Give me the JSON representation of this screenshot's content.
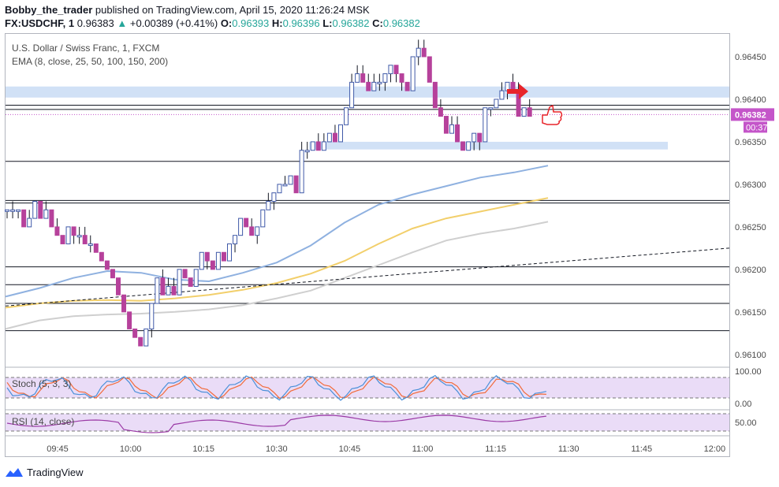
{
  "header": {
    "author": "Bobby_the_trader",
    "published_text": "published on TradingView.com, April 15, 2020 11:26:24 MSK",
    "symbol": "FX:USDCHF, 1",
    "last": "0.96383",
    "arrow": "▲",
    "change": "+0.00389 (+0.41%)",
    "o_label": "O:",
    "o_value": "0.96393",
    "h_label": "H:",
    "h_value": "0.96396",
    "l_label": "L:",
    "l_value": "0.96382",
    "c_label": "C:",
    "c_value": "0.96382"
  },
  "legend": {
    "instrument": "U.S. Dollar / Swiss Franc, 1, FXCM",
    "ema": "EMA (8, close, 25, 50, 100, 150, 200)",
    "stoch": "Stoch (5, 3, 3)",
    "rsi": "RSI (14, close)"
  },
  "price_badge": "0.96382",
  "timer_badge": "00:37",
  "footer": {
    "brand": "TradingView"
  },
  "colors": {
    "up": "#3f59a8",
    "down": "#b6419b",
    "ema_fast": "#8fb1e0",
    "ema_mid": "#f2cf6b",
    "ema_slow": "#cfcfcf",
    "zone": "#c9dcf5",
    "stoch_k": "#4a90d9",
    "stoch_d": "#f26b3a",
    "stoch_bg": "#eadcf7",
    "rsi": "#9b3aa6",
    "badge": "#c455c9"
  },
  "chart_data": {
    "type": "candlestick",
    "price_axis": {
      "min": 0.96085,
      "max": 0.96475,
      "ticks": [
        "0.96450",
        "0.96400",
        "0.96350",
        "0.96300",
        "0.96250",
        "0.96200",
        "0.96150",
        "0.96100"
      ]
    },
    "time_axis": {
      "ticks": [
        "09:45",
        "10:00",
        "10:15",
        "10:30",
        "10:45",
        "11:00",
        "11:15",
        "11:30",
        "11:45",
        "12:00"
      ]
    },
    "stoch_axis": [
      "100.00",
      "0.00"
    ],
    "rsi_axis": [
      "50.00"
    ],
    "horizontal_levels": [
      0.96393,
      0.96388,
      0.96327,
      0.96281,
      0.96278,
      0.96203,
      0.96182,
      0.9616,
      0.96128
    ],
    "zones": [
      {
        "from": 0.96402,
        "to": 0.96415
      },
      {
        "from": 0.96341,
        "to": 0.9635
      }
    ],
    "candles": [
      [
        0.9627,
        0.9627,
        0.9626,
        0.9627
      ],
      [
        0.9627,
        0.9628,
        0.9626,
        0.9627
      ],
      [
        0.9627,
        0.9627,
        0.9626,
        0.9627
      ],
      [
        0.9627,
        0.9627,
        0.9625,
        0.9625
      ],
      [
        0.9625,
        0.9627,
        0.9625,
        0.9626
      ],
      [
        0.9626,
        0.9628,
        0.9626,
        0.9628
      ],
      [
        0.9628,
        0.9628,
        0.9626,
        0.9626
      ],
      [
        0.9626,
        0.9628,
        0.9626,
        0.9627
      ],
      [
        0.9627,
        0.9627,
        0.9625,
        0.9625
      ],
      [
        0.9625,
        0.9626,
        0.9624,
        0.9624
      ],
      [
        0.9624,
        0.9624,
        0.9623,
        0.9623
      ],
      [
        0.9623,
        0.9625,
        0.9623,
        0.9625
      ],
      [
        0.9625,
        0.9625,
        0.9623,
        0.9624
      ],
      [
        0.9624,
        0.9625,
        0.9623,
        0.9624
      ],
      [
        0.9624,
        0.9625,
        0.9623,
        0.9623
      ],
      [
        0.9623,
        0.9624,
        0.9622,
        0.9623
      ],
      [
        0.9623,
        0.9623,
        0.9622,
        0.9622
      ],
      [
        0.9622,
        0.9622,
        0.9621,
        0.9621
      ],
      [
        0.9621,
        0.9621,
        0.962,
        0.962
      ],
      [
        0.962,
        0.962,
        0.9619,
        0.9619
      ],
      [
        0.9619,
        0.9619,
        0.9617,
        0.9617
      ],
      [
        0.9617,
        0.9617,
        0.9615,
        0.9615
      ],
      [
        0.9615,
        0.9615,
        0.9613,
        0.9613
      ],
      [
        0.9613,
        0.9613,
        0.9612,
        0.9612
      ],
      [
        0.9612,
        0.9612,
        0.9611,
        0.9611
      ],
      [
        0.9611,
        0.9613,
        0.9611,
        0.9613
      ],
      [
        0.9613,
        0.9616,
        0.9612,
        0.9616
      ],
      [
        0.9616,
        0.9619,
        0.9616,
        0.9619
      ],
      [
        0.9619,
        0.962,
        0.9617,
        0.9617
      ],
      [
        0.9617,
        0.9619,
        0.9617,
        0.9618
      ],
      [
        0.9618,
        0.9619,
        0.9617,
        0.9617
      ],
      [
        0.9617,
        0.962,
        0.9617,
        0.962
      ],
      [
        0.962,
        0.962,
        0.9619,
        0.9619
      ],
      [
        0.9619,
        0.9619,
        0.9618,
        0.9618
      ],
      [
        0.9618,
        0.962,
        0.9618,
        0.962
      ],
      [
        0.962,
        0.9622,
        0.962,
        0.9622
      ],
      [
        0.9622,
        0.9622,
        0.962,
        0.9621
      ],
      [
        0.9621,
        0.9621,
        0.962,
        0.962
      ],
      [
        0.962,
        0.9622,
        0.962,
        0.9622
      ],
      [
        0.9622,
        0.9622,
        0.9621,
        0.9621
      ],
      [
        0.9621,
        0.9623,
        0.9621,
        0.9623
      ],
      [
        0.9623,
        0.9624,
        0.9622,
        0.9624
      ],
      [
        0.9624,
        0.9626,
        0.9624,
        0.9626
      ],
      [
        0.9626,
        0.9626,
        0.9625,
        0.9625
      ],
      [
        0.9625,
        0.9626,
        0.9624,
        0.9624
      ],
      [
        0.9624,
        0.9625,
        0.9623,
        0.9625
      ],
      [
        0.9625,
        0.9627,
        0.9625,
        0.9627
      ],
      [
        0.9627,
        0.9629,
        0.9627,
        0.9628
      ],
      [
        0.9628,
        0.9629,
        0.9627,
        0.9629
      ],
      [
        0.9629,
        0.963,
        0.9629,
        0.963
      ],
      [
        0.963,
        0.9631,
        0.963,
        0.963
      ],
      [
        0.963,
        0.9631,
        0.963,
        0.9631
      ],
      [
        0.9631,
        0.9631,
        0.9629,
        0.9629
      ],
      [
        0.9629,
        0.9635,
        0.9629,
        0.9634
      ],
      [
        0.9634,
        0.9635,
        0.9633,
        0.9634
      ],
      [
        0.9634,
        0.9635,
        0.9634,
        0.9635
      ],
      [
        0.9635,
        0.9636,
        0.9634,
        0.9634
      ],
      [
        0.9634,
        0.9636,
        0.9634,
        0.9635
      ],
      [
        0.9635,
        0.9636,
        0.9635,
        0.9636
      ],
      [
        0.9636,
        0.9637,
        0.9635,
        0.9635
      ],
      [
        0.9635,
        0.9637,
        0.9635,
        0.9637
      ],
      [
        0.9637,
        0.9639,
        0.9637,
        0.9639
      ],
      [
        0.9639,
        0.9643,
        0.9639,
        0.9642
      ],
      [
        0.9642,
        0.9644,
        0.9642,
        0.9643
      ],
      [
        0.9643,
        0.9644,
        0.9642,
        0.9642
      ],
      [
        0.9642,
        0.9643,
        0.9641,
        0.9641
      ],
      [
        0.9641,
        0.9643,
        0.9641,
        0.9642
      ],
      [
        0.9642,
        0.9643,
        0.9641,
        0.9642
      ],
      [
        0.9642,
        0.9643,
        0.9641,
        0.9643
      ],
      [
        0.9643,
        0.9644,
        0.9642,
        0.9644
      ],
      [
        0.9644,
        0.9644,
        0.9642,
        0.9643
      ],
      [
        0.9643,
        0.9643,
        0.9641,
        0.9642
      ],
      [
        0.9642,
        0.9642,
        0.9641,
        0.9641
      ],
      [
        0.9641,
        0.9645,
        0.9641,
        0.9645
      ],
      [
        0.9645,
        0.9647,
        0.9644,
        0.9646
      ],
      [
        0.9646,
        0.9647,
        0.9645,
        0.9645
      ],
      [
        0.9645,
        0.9645,
        0.9642,
        0.9642
      ],
      [
        0.9642,
        0.9642,
        0.9639,
        0.9639
      ],
      [
        0.9639,
        0.964,
        0.9638,
        0.9638
      ],
      [
        0.9638,
        0.9638,
        0.9636,
        0.9636
      ],
      [
        0.9636,
        0.9638,
        0.9636,
        0.9637
      ],
      [
        0.9637,
        0.9638,
        0.9635,
        0.9635
      ],
      [
        0.9635,
        0.9635,
        0.9634,
        0.9634
      ],
      [
        0.9634,
        0.9635,
        0.9634,
        0.9635
      ],
      [
        0.9635,
        0.9636,
        0.9634,
        0.9636
      ],
      [
        0.9636,
        0.9636,
        0.9634,
        0.9635
      ],
      [
        0.9635,
        0.9639,
        0.9635,
        0.9639
      ],
      [
        0.9639,
        0.9639,
        0.9638,
        0.9639
      ],
      [
        0.9639,
        0.964,
        0.9639,
        0.964
      ],
      [
        0.964,
        0.9642,
        0.964,
        0.9641
      ],
      [
        0.9641,
        0.9642,
        0.964,
        0.9642
      ],
      [
        0.9642,
        0.9643,
        0.9641,
        0.9641
      ],
      [
        0.9641,
        0.9642,
        0.9638,
        0.9638
      ],
      [
        0.9638,
        0.9639,
        0.9638,
        0.9639
      ],
      [
        0.9639,
        0.964,
        0.9638,
        0.9638
      ]
    ],
    "series": [
      {
        "name": "EMA fast",
        "values": [
          0.96168,
          0.96178,
          0.9619,
          0.96198,
          0.96196,
          0.96188,
          0.96186,
          0.96196,
          0.96208,
          0.96228,
          0.96255,
          0.96276,
          0.96288,
          0.96298,
          0.96308,
          0.96314,
          0.96322
        ]
      },
      {
        "name": "EMA mid",
        "values": [
          0.96155,
          0.9616,
          0.96163,
          0.96164,
          0.96163,
          0.96166,
          0.9617,
          0.96176,
          0.96184,
          0.96195,
          0.9621,
          0.9623,
          0.96248,
          0.9626,
          0.96268,
          0.96276,
          0.96284
        ]
      },
      {
        "name": "EMA slow",
        "values": [
          0.9613,
          0.9614,
          0.96145,
          0.96147,
          0.96148,
          0.9615,
          0.96153,
          0.96158,
          0.96166,
          0.96175,
          0.9619,
          0.96205,
          0.9622,
          0.96234,
          0.96242,
          0.96248,
          0.96256
        ]
      },
      {
        "name": "Trendline",
        "values": [
          0.96157,
          0.96225
        ]
      }
    ]
  }
}
